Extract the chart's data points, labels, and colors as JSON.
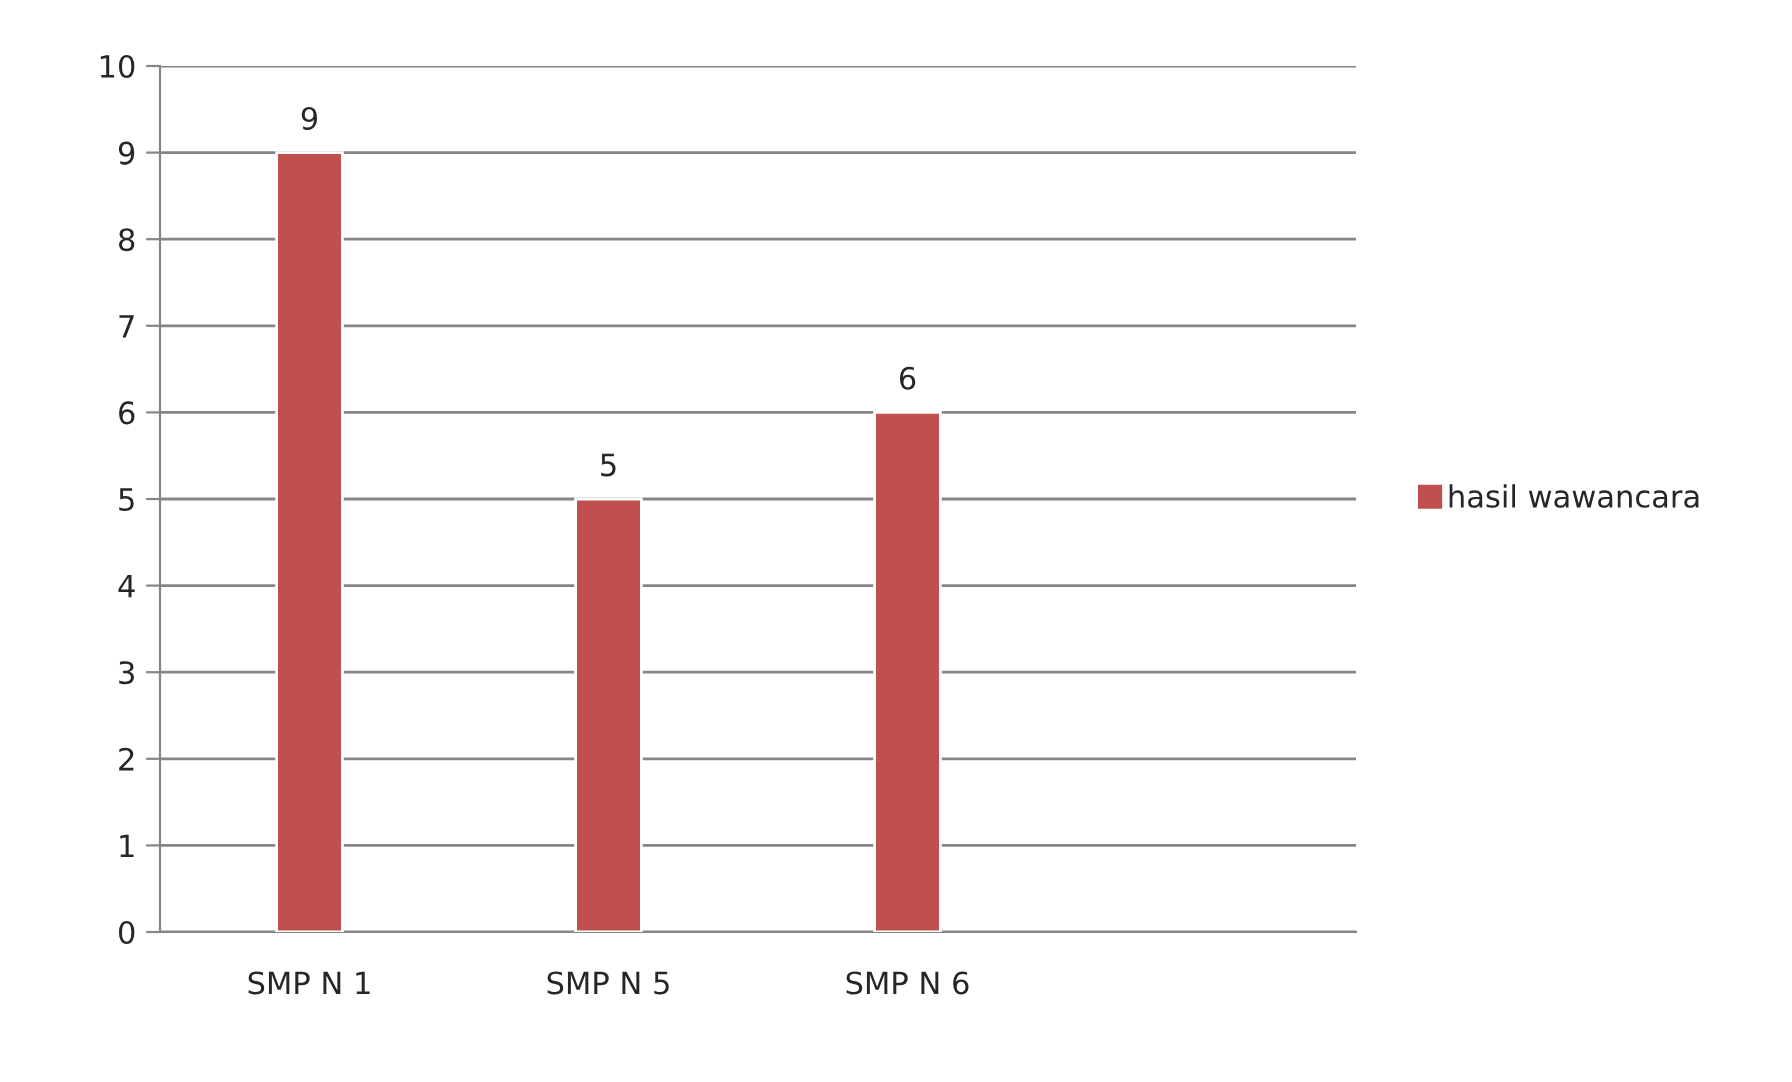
{
  "chart_data": {
    "type": "bar",
    "categories": [
      "SMP N 1",
      "SMP N 5",
      "SMP N 6",
      null
    ],
    "series": [
      {
        "name": "hasil wawancara",
        "color": "#c0504d",
        "values": [
          9,
          5,
          6,
          null
        ]
      }
    ],
    "ylim": [
      0,
      10
    ],
    "yticks": [
      0,
      1,
      2,
      3,
      4,
      5,
      6,
      7,
      8,
      9,
      10
    ],
    "grid": "y",
    "legend": "right",
    "data_labels": true
  }
}
